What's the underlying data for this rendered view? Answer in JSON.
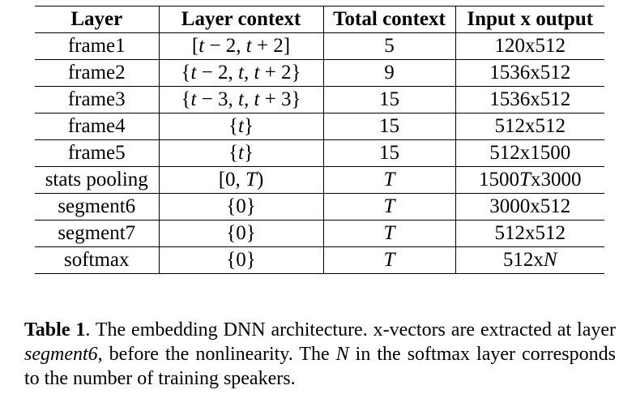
{
  "table": {
    "headers": [
      "Layer",
      "Layer context",
      "Total context",
      "Input x output"
    ],
    "rows": [
      {
        "layer": "frame1",
        "context": "[t − 2, t + 2]",
        "total": "5",
        "io": "120x512"
      },
      {
        "layer": "frame2",
        "context": "{t − 2, t, t + 2}",
        "total": "9",
        "io": "1536x512"
      },
      {
        "layer": "frame3",
        "context": "{t − 3, t, t + 3}",
        "total": "15",
        "io": "1536x512"
      },
      {
        "layer": "frame4",
        "context": "{t}",
        "total": "15",
        "io": "512x512"
      },
      {
        "layer": "frame5",
        "context": "{t}",
        "total": "15",
        "io": "512x1500"
      },
      {
        "layer": "stats pooling",
        "context": "[0, T)",
        "total": "T",
        "io": "1500Tx3000"
      },
      {
        "layer": "segment6",
        "context": "{0}",
        "total": "T",
        "io": "3000x512"
      },
      {
        "layer": "segment7",
        "context": "{0}",
        "total": "T",
        "io": "512x512"
      },
      {
        "layer": "softmax",
        "context": "{0}",
        "total": "T",
        "io": "512xN"
      }
    ]
  },
  "caption": {
    "label": "Table 1",
    "part1": ". The embedding DNN architecture. x-vectors are extracted at layer ",
    "emph": "segment6",
    "part2": ", before the nonlinearity. The ",
    "var": "N",
    "part3": " in the softmax layer corresponds to the number of training speakers."
  }
}
